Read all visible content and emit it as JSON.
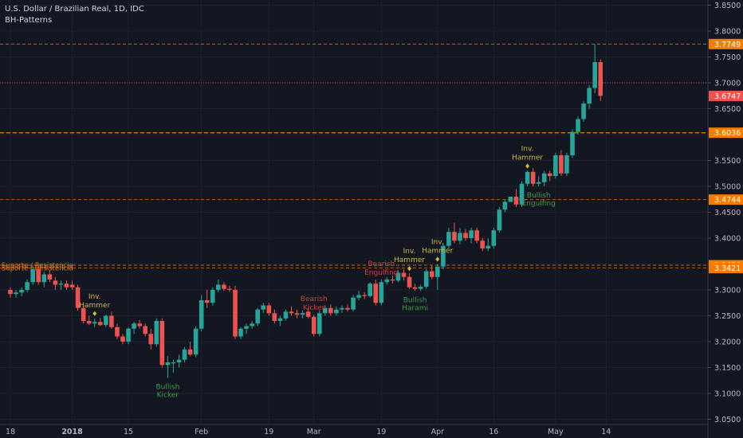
{
  "header": {
    "title": "U.S. Dollar / Brazilian Real, 1D, IDC",
    "indicator": "BH-Patterns"
  },
  "colors": {
    "background": "#131722",
    "grid": "#1e222d",
    "up": "#26a69a",
    "down": "#ef5350",
    "orange": "#f57c00",
    "yellow": "#d4b63a",
    "green_label": "#3f9a4a",
    "red_label": "#d43d3d",
    "axis_text": "#b2b5be"
  },
  "chart_data": {
    "type": "candlestick",
    "y_axis": {
      "range": [
        3.04,
        3.86
      ],
      "ticks": [
        "3.0500",
        "3.1000",
        "3.1500",
        "3.2000",
        "3.2500",
        "3.3000",
        "3.3500",
        "3.4000",
        "3.4500",
        "3.5000",
        "3.5500",
        "3.6000",
        "3.6500",
        "3.7000",
        "3.7500",
        "3.8000",
        "3.8500"
      ]
    },
    "x_axis": {
      "labels": [
        {
          "text": "18",
          "index": 0
        },
        {
          "text": "2018",
          "index": 11
        },
        {
          "text": "15",
          "index": 21
        },
        {
          "text": "Feb",
          "index": 34
        },
        {
          "text": "19",
          "index": 46
        },
        {
          "text": "Mar",
          "index": 54
        },
        {
          "text": "19",
          "index": 66
        },
        {
          "text": "Apr",
          "index": 76
        },
        {
          "text": "16",
          "index": 86
        },
        {
          "text": "May",
          "index": 97
        },
        {
          "text": "14",
          "index": 106
        }
      ]
    },
    "candles": [
      [
        3.3,
        3.305,
        3.285,
        3.292
      ],
      [
        3.292,
        3.3,
        3.285,
        3.295
      ],
      [
        3.295,
        3.305,
        3.288,
        3.3
      ],
      [
        3.3,
        3.32,
        3.295,
        3.315
      ],
      [
        3.315,
        3.345,
        3.31,
        3.34
      ],
      [
        3.34,
        3.348,
        3.31,
        3.315
      ],
      [
        3.315,
        3.335,
        3.305,
        3.33
      ],
      [
        3.33,
        3.338,
        3.315,
        3.32
      ],
      [
        3.318,
        3.325,
        3.3,
        3.31
      ],
      [
        3.31,
        3.318,
        3.3,
        3.312
      ],
      [
        3.312,
        3.318,
        3.3,
        3.305
      ],
      [
        3.31,
        3.318,
        3.3,
        3.305
      ],
      [
        3.305,
        3.31,
        3.26,
        3.265
      ],
      [
        3.265,
        3.27,
        3.235,
        3.24
      ],
      [
        3.24,
        3.25,
        3.232,
        3.235
      ],
      [
        3.235,
        3.245,
        3.228,
        3.238
      ],
      [
        3.238,
        3.246,
        3.23,
        3.232
      ],
      [
        3.232,
        3.252,
        3.228,
        3.25
      ],
      [
        3.25,
        3.258,
        3.225,
        3.228
      ],
      [
        3.228,
        3.235,
        3.205,
        3.21
      ],
      [
        3.21,
        3.215,
        3.195,
        3.2
      ],
      [
        3.2,
        3.228,
        3.195,
        3.225
      ],
      [
        3.225,
        3.238,
        3.215,
        3.235
      ],
      [
        3.235,
        3.242,
        3.225,
        3.23
      ],
      [
        3.23,
        3.235,
        3.21,
        3.215
      ],
      [
        3.215,
        3.225,
        3.185,
        3.195
      ],
      [
        3.195,
        3.245,
        3.19,
        3.24
      ],
      [
        3.24,
        3.245,
        3.15,
        3.155
      ],
      [
        3.155,
        3.172,
        3.13,
        3.16
      ],
      [
        3.158,
        3.165,
        3.14,
        3.16
      ],
      [
        3.16,
        3.175,
        3.15,
        3.165
      ],
      [
        3.165,
        3.19,
        3.16,
        3.185
      ],
      [
        3.185,
        3.2,
        3.172,
        3.175
      ],
      [
        3.175,
        3.23,
        3.17,
        3.225
      ],
      [
        3.225,
        3.29,
        3.22,
        3.28
      ],
      [
        3.28,
        3.3,
        3.265,
        3.275
      ],
      [
        3.275,
        3.305,
        3.27,
        3.3
      ],
      [
        3.3,
        3.32,
        3.295,
        3.31
      ],
      [
        3.31,
        3.315,
        3.298,
        3.302
      ],
      [
        3.302,
        3.308,
        3.296,
        3.3
      ],
      [
        3.3,
        3.308,
        3.205,
        3.21
      ],
      [
        3.21,
        3.228,
        3.205,
        3.225
      ],
      [
        3.225,
        3.235,
        3.215,
        3.23
      ],
      [
        3.23,
        3.24,
        3.225,
        3.235
      ],
      [
        3.235,
        3.265,
        3.23,
        3.262
      ],
      [
        3.262,
        3.275,
        3.255,
        3.27
      ],
      [
        3.27,
        3.275,
        3.25,
        3.255
      ],
      [
        3.255,
        3.262,
        3.235,
        3.24
      ],
      [
        3.24,
        3.25,
        3.23,
        3.245
      ],
      [
        3.245,
        3.262,
        3.24,
        3.258
      ],
      [
        3.258,
        3.268,
        3.25,
        3.255
      ],
      [
        3.255,
        3.262,
        3.245,
        3.252
      ],
      [
        3.252,
        3.26,
        3.245,
        3.255
      ],
      [
        3.258,
        3.265,
        3.245,
        3.248
      ],
      [
        3.248,
        3.252,
        3.21,
        3.215
      ],
      [
        3.215,
        3.26,
        3.21,
        3.255
      ],
      [
        3.255,
        3.27,
        3.25,
        3.265
      ],
      [
        3.265,
        3.272,
        3.25,
        3.255
      ],
      [
        3.255,
        3.268,
        3.25,
        3.262
      ],
      [
        3.262,
        3.27,
        3.256,
        3.265
      ],
      [
        3.265,
        3.272,
        3.258,
        3.262
      ],
      [
        3.262,
        3.29,
        3.258,
        3.285
      ],
      [
        3.285,
        3.298,
        3.28,
        3.29
      ],
      [
        3.29,
        3.296,
        3.282,
        3.288
      ],
      [
        3.288,
        3.315,
        3.285,
        3.312
      ],
      [
        3.312,
        3.32,
        3.27,
        3.275
      ],
      [
        3.275,
        3.32,
        3.27,
        3.315
      ],
      [
        3.315,
        3.325,
        3.31,
        3.32
      ],
      [
        3.32,
        3.328,
        3.312,
        3.318
      ],
      [
        3.318,
        3.338,
        3.315,
        3.333
      ],
      [
        3.333,
        3.34,
        3.318,
        3.325
      ],
      [
        3.325,
        3.332,
        3.302,
        3.305
      ],
      [
        3.305,
        3.312,
        3.298,
        3.302
      ],
      [
        3.302,
        3.31,
        3.298,
        3.306
      ],
      [
        3.306,
        3.34,
        3.302,
        3.336
      ],
      [
        3.336,
        3.348,
        3.32,
        3.325
      ],
      [
        3.325,
        3.35,
        3.3,
        3.345
      ],
      [
        3.345,
        3.39,
        3.34,
        3.385
      ],
      [
        3.385,
        3.42,
        3.38,
        3.412
      ],
      [
        3.412,
        3.43,
        3.39,
        3.395
      ],
      [
        3.395,
        3.42,
        3.388,
        3.41
      ],
      [
        3.41,
        3.418,
        3.395,
        3.4
      ],
      [
        3.4,
        3.42,
        3.39,
        3.415
      ],
      [
        3.415,
        3.42,
        3.39,
        3.395
      ],
      [
        3.395,
        3.4,
        3.375,
        3.38
      ],
      [
        3.38,
        3.4,
        3.375,
        3.385
      ],
      [
        3.385,
        3.42,
        3.38,
        3.415
      ],
      [
        3.415,
        3.46,
        3.41,
        3.455
      ],
      [
        3.455,
        3.475,
        3.45,
        3.47
      ],
      [
        3.47,
        3.48,
        3.47,
        3.48
      ],
      [
        3.48,
        3.495,
        3.46,
        3.465
      ],
      [
        3.465,
        3.51,
        3.46,
        3.505
      ],
      [
        3.505,
        3.53,
        3.5,
        3.528
      ],
      [
        3.528,
        3.535,
        3.5,
        3.505
      ],
      [
        3.505,
        3.52,
        3.5,
        3.508
      ],
      [
        3.508,
        3.53,
        3.5,
        3.525
      ],
      [
        3.525,
        3.53,
        3.51,
        3.52
      ],
      [
        3.52,
        3.565,
        3.515,
        3.56
      ],
      [
        3.56,
        3.57,
        3.52,
        3.525
      ],
      [
        3.525,
        3.565,
        3.52,
        3.56
      ],
      [
        3.56,
        3.61,
        3.555,
        3.605
      ],
      [
        3.605,
        3.635,
        3.6,
        3.63
      ],
      [
        3.63,
        3.665,
        3.625,
        3.66
      ],
      [
        3.66,
        3.695,
        3.65,
        3.69
      ],
      [
        3.69,
        3.775,
        3.68,
        3.74
      ],
      [
        3.74,
        3.745,
        3.665,
        3.675
      ]
    ],
    "horizontal_lines": [
      {
        "value": 3.7749,
        "style": "dashed",
        "color": "#f57c00",
        "label": "3.7749"
      },
      {
        "value": 3.7,
        "style": "dotted",
        "color": "#ef5350",
        "label": ""
      },
      {
        "value": 3.6747,
        "style": "none",
        "color": "#ef5350",
        "label": "3.6747"
      },
      {
        "value": 3.6036,
        "style": "dashed-bold",
        "color": "#f57c00",
        "label": "3.6036"
      },
      {
        "value": 3.4744,
        "style": "dashed",
        "color": "#f57c00",
        "label": "3.4744"
      },
      {
        "value": 3.3476,
        "style": "dashed",
        "color": "#f57c00",
        "label": "3.3476"
      },
      {
        "value": 3.3421,
        "style": "dashed",
        "color": "#f57c00",
        "label": "3.3421"
      }
    ],
    "level_labels": [
      {
        "text": "Suporte / Resistencia",
        "value": 3.3476
      },
      {
        "text": "Suporte / Resistencia",
        "value": 3.3421
      }
    ],
    "annotations": [
      {
        "lines": [
          "Inv.",
          "Hammer"
        ],
        "index": 15,
        "color": "yellow",
        "position": "above",
        "marker": true
      },
      {
        "lines": [
          "Bullish",
          "Kicker"
        ],
        "index": 28,
        "color": "green",
        "position": "below"
      },
      {
        "lines": [
          "Bearish",
          "Kicker"
        ],
        "index": 54,
        "color": "red",
        "position": "above"
      },
      {
        "lines": [
          "Bearish",
          "Engulfing"
        ],
        "index": 66,
        "color": "red",
        "position": "above"
      },
      {
        "lines": [
          "Inv.",
          "Hammer"
        ],
        "index": 71,
        "color": "yellow",
        "position": "above",
        "marker": true
      },
      {
        "lines": [
          "Bullish",
          "Harami"
        ],
        "index": 72,
        "color": "green",
        "position": "below"
      },
      {
        "lines": [
          "Inv.",
          "Hammer"
        ],
        "index": 76,
        "color": "yellow",
        "position": "above",
        "marker": true
      },
      {
        "lines": [
          "Inv.",
          "Hammer"
        ],
        "index": 92,
        "color": "yellow",
        "position": "above",
        "marker": true
      },
      {
        "lines": [
          "Bullish",
          "Engulfing"
        ],
        "index": 94,
        "color": "green",
        "position": "below"
      }
    ]
  }
}
